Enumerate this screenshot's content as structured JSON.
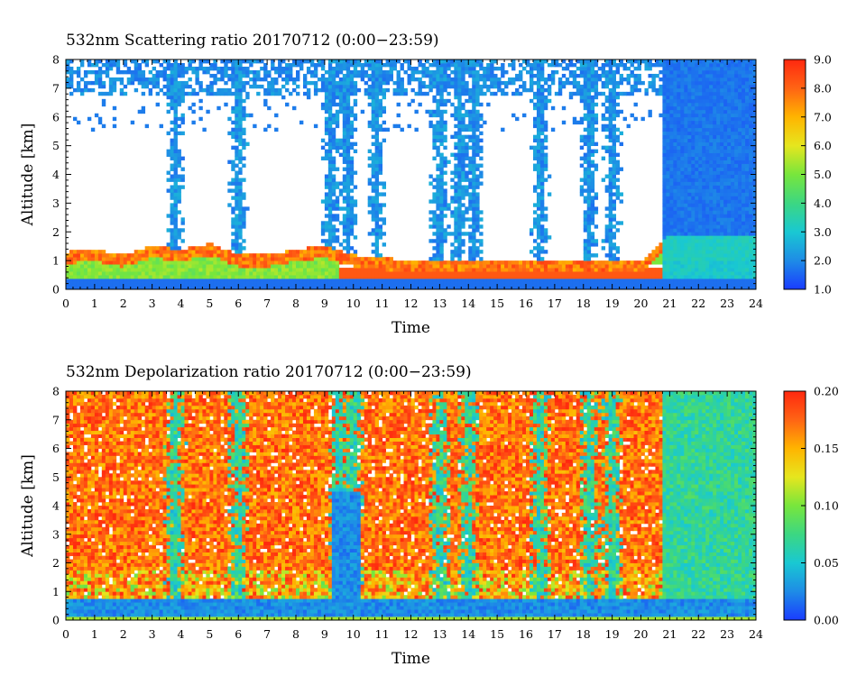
{
  "chart_data": [
    {
      "type": "heatmap",
      "title": "532nm Scattering ratio  20170712 (0:00−23:59)",
      "xlabel": "Time",
      "ylabel": "Altitude [km]",
      "xlim": [
        0,
        24
      ],
      "ylim": [
        0,
        8
      ],
      "x_ticks": [
        "0",
        "1",
        "2",
        "3",
        "4",
        "5",
        "6",
        "7",
        "8",
        "9",
        "10",
        "11",
        "12",
        "13",
        "14",
        "15",
        "16",
        "17",
        "18",
        "19",
        "20",
        "21",
        "22",
        "23",
        "24"
      ],
      "y_ticks": [
        "0",
        "1",
        "2",
        "3",
        "4",
        "5",
        "6",
        "7",
        "8"
      ],
      "colorbar": {
        "range": [
          1.0,
          9.0
        ],
        "ticks": [
          "1.0",
          "2.0",
          "3.0",
          "4.0",
          "5.0",
          "6.0",
          "7.0",
          "8.0",
          "9.0"
        ],
        "colors": [
          "#1a3cff",
          "#1e8ce6",
          "#19c8d2",
          "#3cd782",
          "#78e63c",
          "#e6e61e",
          "#ffb400",
          "#ff6414",
          "#ff280f"
        ]
      },
      "features": {
        "boundary_layer_top_km": [
          1.3,
          1.4,
          1.2,
          1.5,
          1.4,
          1.6,
          1.2,
          1.2,
          1.4,
          1.5,
          1.2,
          1.1,
          1.0,
          1.0,
          1.0,
          1.0,
          1.0,
          1.0,
          1.0,
          1.0,
          1.0,
          1.9,
          1.9,
          1.9,
          1.9
        ],
        "high_aerosol_columns_hour": [
          3.8,
          6.0,
          9.2,
          9.8,
          10.8,
          13.0,
          13.7,
          14.2,
          16.5,
          18.2,
          19.0
        ],
        "low_signal_after_hour": 20.8
      }
    },
    {
      "type": "heatmap",
      "title": "532nm Depolarization ratio  20170712 (0:00−23:59)",
      "xlabel": "Time",
      "ylabel": "Altitude [km]",
      "xlim": [
        0,
        24
      ],
      "ylim": [
        0,
        8
      ],
      "x_ticks": [
        "0",
        "1",
        "2",
        "3",
        "4",
        "5",
        "6",
        "7",
        "8",
        "9",
        "10",
        "11",
        "12",
        "13",
        "14",
        "15",
        "16",
        "17",
        "18",
        "19",
        "20",
        "21",
        "22",
        "23",
        "24"
      ],
      "y_ticks": [
        "0",
        "1",
        "2",
        "3",
        "4",
        "5",
        "6",
        "7",
        "8"
      ],
      "colorbar": {
        "range": [
          0.0,
          0.2
        ],
        "ticks": [
          "0.00",
          "0.05",
          "0.10",
          "0.15",
          "0.20"
        ],
        "colors": [
          "#1a3cff",
          "#1e8ce6",
          "#19c8d2",
          "#3cd782",
          "#78e63c",
          "#e6e61e",
          "#ffb400",
          "#ff6414",
          "#ff280f"
        ]
      },
      "features": {
        "low_depol_columns_hour": [
          3.8,
          6.0,
          9.5,
          10.0,
          13.0,
          14.0,
          16.5,
          18.2,
          19.0
        ],
        "low_depol_region_after_hour": 20.8
      }
    }
  ]
}
